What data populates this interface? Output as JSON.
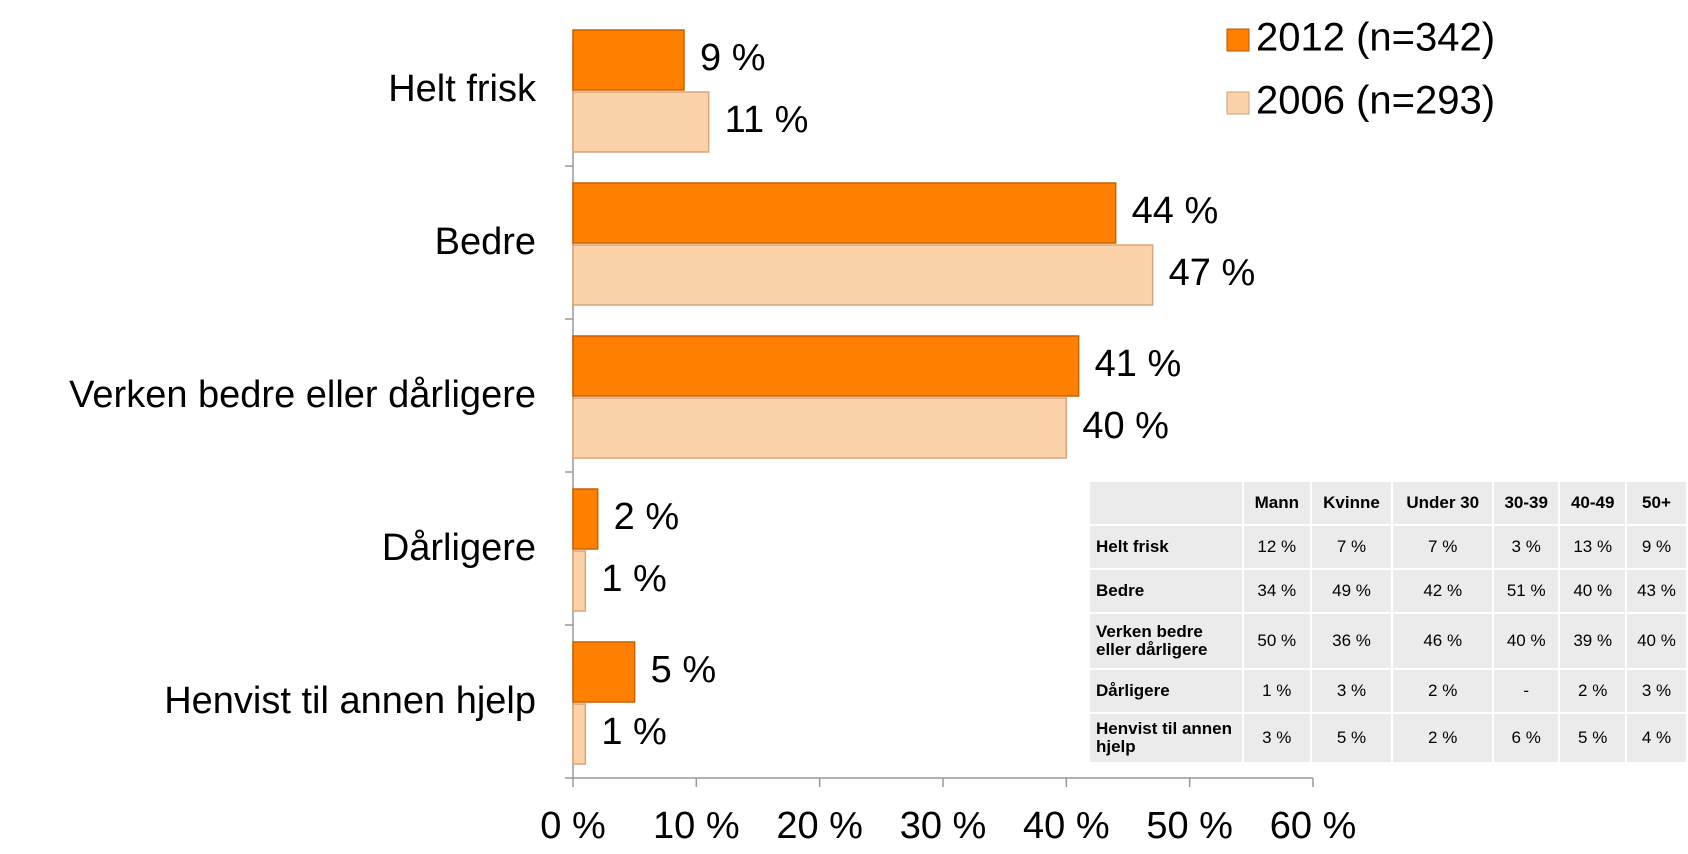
{
  "chart_data": {
    "type": "bar",
    "orientation": "horizontal",
    "categories": [
      "Helt frisk",
      "Bedre",
      "Verken bedre eller dårligere",
      "Dårligere",
      "Henvist til annen hjelp"
    ],
    "series": [
      {
        "name": "2012 (n=342)",
        "color": "#ff8000",
        "values": [
          9,
          44,
          41,
          2,
          5
        ],
        "value_labels": [
          "9 %",
          "44 %",
          "41 %",
          "2 %",
          "5 %"
        ]
      },
      {
        "name": "2006 (n=293)",
        "color": "#fcd3a8",
        "values": [
          11,
          47,
          40,
          1,
          1
        ],
        "value_labels": [
          "11 %",
          "47 %",
          "40 %",
          "1 %",
          "1 %"
        ]
      }
    ],
    "xlim": [
      0,
      60
    ],
    "xticks": [
      {
        "value": 0,
        "label": "0 %"
      },
      {
        "value": 10,
        "label": "10 %"
      },
      {
        "value": 20,
        "label": "20 %"
      },
      {
        "value": 30,
        "label": "30 %"
      },
      {
        "value": 40,
        "label": "40 %"
      },
      {
        "value": 50,
        "label": "50 %"
      },
      {
        "value": 60,
        "label": "60 %"
      }
    ],
    "legend": "top-right"
  },
  "table": {
    "columns": [
      "Mann",
      "Kvinne",
      "Under 30",
      "30-39",
      "40-49",
      "50+"
    ],
    "rows": [
      {
        "label": "Helt frisk",
        "cells": [
          "12 %",
          "7 %",
          "7 %",
          "3 %",
          "13 %",
          "9 %"
        ]
      },
      {
        "label": "Bedre",
        "cells": [
          "34 %",
          "49 %",
          "42 %",
          "51 %",
          "40 %",
          "43 %"
        ]
      },
      {
        "label": "Verken bedre eller dårligere",
        "cells": [
          "50 %",
          "36 %",
          "46 %",
          "40 %",
          "39 %",
          "40 %"
        ]
      },
      {
        "label": "Dårligere",
        "cells": [
          "1 %",
          "3 %",
          "2 %",
          "-",
          "2 %",
          "3 %"
        ]
      },
      {
        "label": "Henvist til annen hjelp",
        "cells": [
          "3 %",
          "5 %",
          "2 %",
          "6 %",
          "5 %",
          "4 %"
        ]
      }
    ]
  }
}
